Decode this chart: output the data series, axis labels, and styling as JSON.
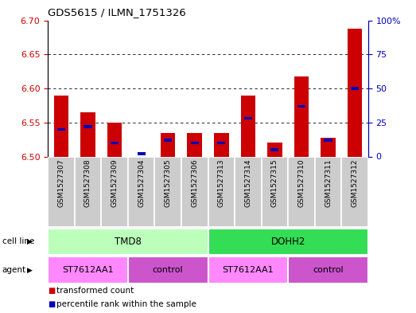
{
  "title": "GDS5615 / ILMN_1751326",
  "samples": [
    "GSM1527307",
    "GSM1527308",
    "GSM1527309",
    "GSM1527304",
    "GSM1527305",
    "GSM1527306",
    "GSM1527313",
    "GSM1527314",
    "GSM1527315",
    "GSM1527310",
    "GSM1527311",
    "GSM1527312"
  ],
  "red_values": [
    6.59,
    6.565,
    6.55,
    6.5,
    6.535,
    6.535,
    6.535,
    6.59,
    6.52,
    6.617,
    6.528,
    6.688
  ],
  "blue_pct": [
    20,
    22,
    10,
    2,
    12,
    10,
    10,
    28,
    5,
    37,
    12,
    50
  ],
  "ylim_left": [
    6.5,
    6.7
  ],
  "ylim_right": [
    0,
    100
  ],
  "yticks_left": [
    6.5,
    6.55,
    6.6,
    6.65,
    6.7
  ],
  "yticks_right": [
    0,
    25,
    50,
    75,
    100
  ],
  "red_color": "#cc0000",
  "blue_color": "#0000bb",
  "sample_box_color": "#cccccc",
  "cell_line_groups": [
    {
      "label": "TMD8",
      "start": 0,
      "end": 6,
      "color": "#bbffbb"
    },
    {
      "label": "DOHH2",
      "start": 6,
      "end": 12,
      "color": "#33dd55"
    }
  ],
  "agent_groups": [
    {
      "label": "ST7612AA1",
      "start": 0,
      "end": 3,
      "color": "#ff88ff"
    },
    {
      "label": "control",
      "start": 3,
      "end": 6,
      "color": "#cc55cc"
    },
    {
      "label": "ST7612AA1",
      "start": 6,
      "end": 9,
      "color": "#ff88ff"
    },
    {
      "label": "control",
      "start": 9,
      "end": 12,
      "color": "#cc55cc"
    }
  ],
  "cell_line_label": "cell line",
  "agent_label": "agent",
  "legend": [
    {
      "label": "transformed count",
      "color": "#cc0000"
    },
    {
      "label": "percentile rank within the sample",
      "color": "#0000bb"
    }
  ]
}
